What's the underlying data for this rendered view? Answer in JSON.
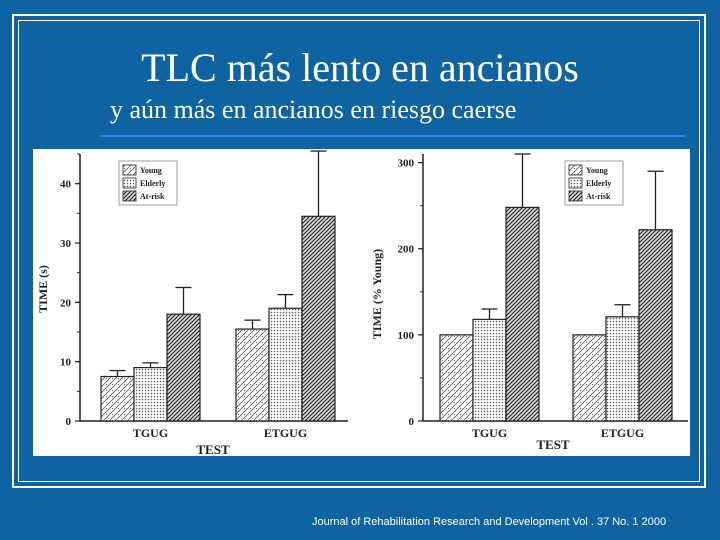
{
  "slide": {
    "title": "TLC más lento en ancianos",
    "subtitle": "y aún más en ancianos en riesgo caerse",
    "citation": "Journal of Rehabilitation Research and Development Vol . 37 No. 1 2000"
  },
  "chart_data": [
    {
      "type": "bar",
      "categories": [
        "TGUG",
        "ETGUG"
      ],
      "xlabel": "TEST",
      "ylabel": "TIME (s)",
      "ylim": [
        0,
        45
      ],
      "yticks": [
        "0",
        "10",
        "20",
        "30",
        "40"
      ],
      "series": [
        {
          "name": "Young",
          "values": [
            7.5,
            15.5
          ],
          "error": [
            1.0,
            1.5
          ]
        },
        {
          "name": "Elderly",
          "values": [
            9.0,
            19.0
          ],
          "error": [
            0.8,
            2.3
          ]
        },
        {
          "name": "At-risk",
          "values": [
            18.0,
            34.5
          ],
          "error": [
            4.5,
            11.0
          ]
        }
      ],
      "legend_position": "top-left"
    },
    {
      "type": "bar",
      "categories": [
        "TGUG",
        "ETGUG"
      ],
      "xlabel": "TEST",
      "ylabel": "TIME (% Young)",
      "ylim": [
        0,
        310
      ],
      "yticks": [
        "0",
        "100",
        "200",
        "300"
      ],
      "series": [
        {
          "name": "Young",
          "values": [
            100,
            100
          ],
          "error": [
            0,
            0
          ]
        },
        {
          "name": "Elderly",
          "values": [
            118,
            121
          ],
          "error": [
            12,
            14
          ]
        },
        {
          "name": "At-risk",
          "values": [
            248,
            222
          ],
          "error": [
            62,
            68
          ]
        }
      ],
      "legend_position": "top-left"
    }
  ]
}
